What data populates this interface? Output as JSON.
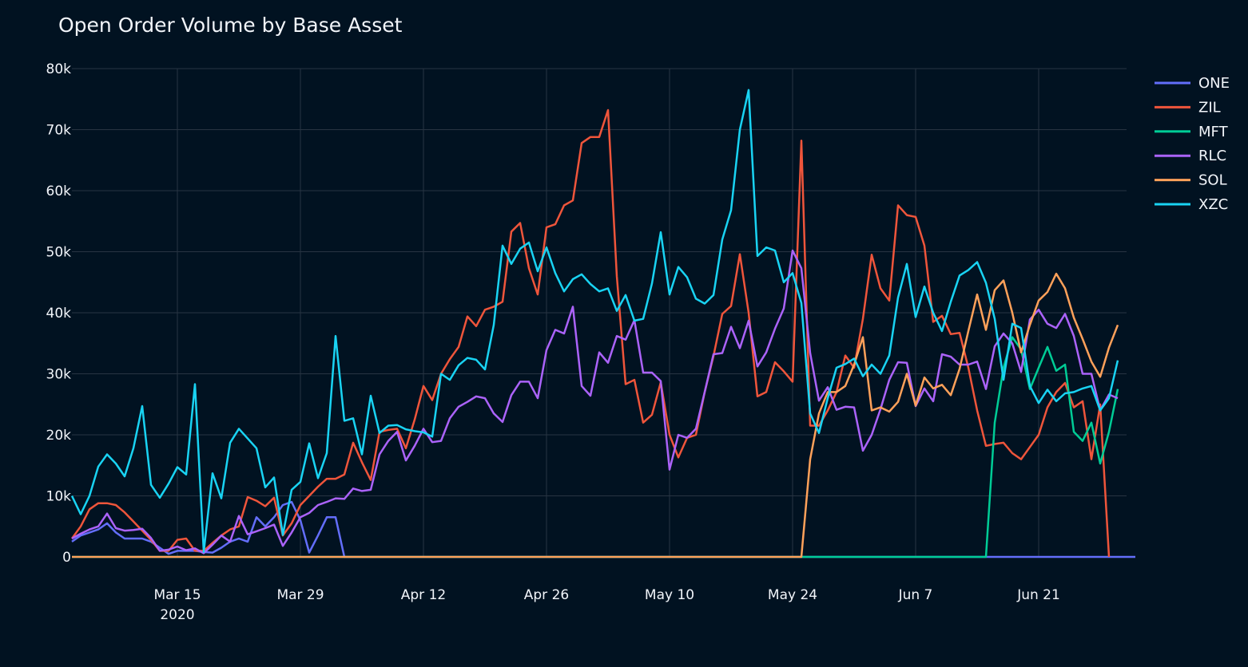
{
  "chart_data": {
    "type": "line",
    "title": "Open Order Volume by Base Asset",
    "xlabel": "",
    "ylabel": "",
    "x_start": "2020-03-03",
    "x_step_days": 1,
    "xlim": [
      "2020-03-03",
      "2020-07-01"
    ],
    "ylim": [
      0,
      80000
    ],
    "y_ticks": [
      0,
      10000,
      20000,
      30000,
      40000,
      50000,
      60000,
      70000,
      80000
    ],
    "y_tick_labels": [
      "0",
      "10k",
      "20k",
      "30k",
      "40k",
      "50k",
      "60k",
      "70k",
      "80k"
    ],
    "x_ticks": [
      {
        "date": "2020-03-15",
        "label": "Mar 15",
        "sublabel": "2020"
      },
      {
        "date": "2020-03-29",
        "label": "Mar 29",
        "sublabel": ""
      },
      {
        "date": "2020-04-12",
        "label": "Apr 12",
        "sublabel": ""
      },
      {
        "date": "2020-04-26",
        "label": "Apr 26",
        "sublabel": ""
      },
      {
        "date": "2020-05-10",
        "label": "May 10",
        "sublabel": ""
      },
      {
        "date": "2020-05-24",
        "label": "May 24",
        "sublabel": ""
      },
      {
        "date": "2020-06-07",
        "label": "Jun 7",
        "sublabel": ""
      },
      {
        "date": "2020-06-21",
        "label": "Jun 21",
        "sublabel": ""
      }
    ],
    "grid": true,
    "legend_position": "top-right",
    "series": [
      {
        "name": "ONE",
        "color": "#636efa",
        "values": [
          2500,
          3500,
          4000,
          4500,
          5500,
          4000,
          3000,
          3000,
          3000,
          2500,
          1500,
          500,
          1000,
          1000,
          1000,
          800,
          700,
          1500,
          2500,
          3000,
          2500,
          6500,
          5000,
          6500,
          8500,
          9000,
          6000,
          700,
          3500,
          6500,
          6500,
          0,
          0,
          0,
          0,
          0,
          0,
          0,
          0,
          0,
          0,
          0,
          0,
          0,
          0,
          0,
          0,
          0,
          0,
          0,
          0,
          0,
          0,
          0,
          0,
          0,
          0,
          0,
          0,
          0,
          0,
          0,
          0,
          0,
          0,
          0,
          0,
          0,
          0,
          0,
          0,
          0,
          0,
          0,
          0,
          0,
          0,
          0,
          0,
          0,
          0,
          0,
          0,
          0,
          0,
          0,
          0,
          0,
          0,
          0,
          0,
          0,
          0,
          0,
          0,
          0,
          0,
          0,
          0,
          0,
          0,
          0,
          0,
          0,
          0,
          0,
          0,
          0,
          0,
          0,
          0,
          0,
          0,
          0,
          0,
          0,
          0,
          0,
          0,
          0,
          0,
          0
        ]
      },
      {
        "name": "ZIL",
        "color": "#ef553b",
        "values": [
          3000,
          5000,
          7800,
          8800,
          8800,
          8500,
          7300,
          5800,
          4300,
          2800,
          1000,
          1000,
          2800,
          3000,
          1000,
          1000,
          2300,
          3500,
          4500,
          5000,
          9800,
          9200,
          8300,
          9700,
          3500,
          5500,
          8500,
          10000,
          11500,
          12800,
          12800,
          13500,
          18700,
          15500,
          12600,
          20500,
          20800,
          21000,
          17800,
          22500,
          28000,
          25700,
          30000,
          32400,
          34400,
          39400,
          37800,
          40500,
          41000,
          41800,
          53300,
          54700,
          47300,
          43000,
          54000,
          54500,
          57600,
          58400,
          67800,
          68800,
          68800,
          73200,
          46000,
          28300,
          29000,
          22000,
          23300,
          28600,
          20000,
          16300,
          19500,
          20000,
          27000,
          32900,
          39800,
          41100,
          49600,
          40000,
          26300,
          27000,
          31900,
          30400,
          28700,
          68200,
          21500,
          21500,
          24000,
          27000,
          33000,
          31000,
          39000,
          49500,
          44000,
          42000,
          57600,
          56000,
          55700,
          51000,
          38500,
          39500,
          36500,
          36700,
          31000,
          24000,
          18200,
          18500,
          18700,
          17000,
          16000,
          18000,
          20000,
          24500,
          27000,
          28500,
          24500,
          25500,
          16000,
          25000,
          0
        ]
      },
      {
        "name": "MFT",
        "color": "#00cc96",
        "values": [
          0,
          0,
          0,
          0,
          0,
          0,
          0,
          0,
          0,
          0,
          0,
          0,
          0,
          0,
          0,
          0,
          0,
          0,
          0,
          0,
          0,
          0,
          0,
          0,
          0,
          0,
          0,
          0,
          0,
          0,
          0,
          0,
          0,
          0,
          0,
          0,
          0,
          0,
          0,
          0,
          0,
          0,
          0,
          0,
          0,
          0,
          0,
          0,
          0,
          0,
          0,
          0,
          0,
          0,
          0,
          0,
          0,
          0,
          0,
          0,
          0,
          0,
          0,
          0,
          0,
          0,
          0,
          0,
          0,
          0,
          0,
          0,
          0,
          0,
          0,
          0,
          0,
          0,
          0,
          0,
          0,
          0,
          0,
          0,
          0,
          0,
          0,
          0,
          0,
          0,
          0,
          0,
          0,
          0,
          0,
          0,
          0,
          0,
          0,
          0,
          0,
          0,
          0,
          0,
          0,
          22000,
          31000,
          36000,
          34000,
          27500,
          31000,
          34400,
          30500,
          31500,
          20500,
          19000,
          22000,
          15300,
          20500,
          27500
        ]
      },
      {
        "name": "RLC",
        "color": "#ab63fa",
        "values": [
          3000,
          3800,
          4500,
          5000,
          7100,
          4700,
          4300,
          4400,
          4600,
          3100,
          1000,
          1200,
          1700,
          1100,
          1400,
          600,
          2000,
          3500,
          2500,
          6700,
          3700,
          4200,
          4700,
          5300,
          1800,
          4000,
          6500,
          7200,
          8500,
          9000,
          9600,
          9500,
          11200,
          10800,
          11000,
          16800,
          19000,
          20500,
          15800,
          18200,
          21000,
          18800,
          19000,
          22700,
          24600,
          25400,
          26300,
          26000,
          23500,
          22100,
          26500,
          28700,
          28700,
          26000,
          33900,
          37200,
          36600,
          41000,
          28000,
          26400,
          33500,
          31800,
          36200,
          35600,
          38800,
          30200,
          30200,
          28800,
          14300,
          20000,
          19500,
          21000,
          27000,
          33200,
          33400,
          37700,
          34200,
          38700,
          31200,
          33500,
          37400,
          40700,
          50200,
          47300,
          33400,
          25600,
          27800,
          24100,
          24600,
          24500,
          17400,
          20000,
          24200,
          29000,
          31900,
          31800,
          24700,
          27600,
          25500,
          33200,
          32800,
          31500,
          31500,
          32000,
          27500,
          34500,
          36600,
          35000,
          30300,
          38900,
          40500,
          38200,
          37500,
          39800,
          36200,
          30000,
          30000,
          24000,
          26600,
          26000
        ]
      },
      {
        "name": "SOL",
        "color": "#ffa15a",
        "values": [
          0,
          0,
          0,
          0,
          0,
          0,
          0,
          0,
          0,
          0,
          0,
          0,
          0,
          0,
          0,
          0,
          0,
          0,
          0,
          0,
          0,
          0,
          0,
          0,
          0,
          0,
          0,
          0,
          0,
          0,
          0,
          0,
          0,
          0,
          0,
          0,
          0,
          0,
          0,
          0,
          0,
          0,
          0,
          0,
          0,
          0,
          0,
          0,
          0,
          0,
          0,
          0,
          0,
          0,
          0,
          0,
          0,
          0,
          0,
          0,
          0,
          0,
          0,
          0,
          0,
          0,
          0,
          0,
          0,
          0,
          0,
          0,
          0,
          0,
          0,
          0,
          0,
          0,
          0,
          0,
          0,
          0,
          0,
          0,
          16000,
          23500,
          27000,
          27000,
          28000,
          31500,
          36000,
          24000,
          24500,
          23800,
          25400,
          30000,
          24800,
          29400,
          27600,
          28200,
          26500,
          30800,
          37000,
          43000,
          37200,
          43700,
          45300,
          40000,
          33500,
          38000,
          42000,
          43400,
          46400,
          44000,
          39200,
          35700,
          32000,
          29500,
          34300,
          38000
        ]
      },
      {
        "name": "XZC",
        "color": "#19d3f3",
        "values": [
          10000,
          7000,
          10000,
          14800,
          16800,
          15300,
          13200,
          17800,
          24700,
          11800,
          9700,
          12000,
          14700,
          13500,
          28300,
          800,
          13700,
          9600,
          18700,
          21000,
          19400,
          17800,
          11400,
          13000,
          3600,
          11000,
          12300,
          18600,
          12900,
          17000,
          36200,
          22300,
          22700,
          16800,
          26400,
          20300,
          21500,
          21600,
          20900,
          20600,
          20400,
          19700,
          30000,
          29000,
          31400,
          32600,
          32300,
          30700,
          38000,
          51000,
          48000,
          50500,
          51500,
          46800,
          50700,
          46500,
          43500,
          45500,
          46300,
          44700,
          43500,
          44000,
          40300,
          42900,
          38700,
          39000,
          44800,
          53200,
          43000,
          47500,
          45800,
          42300,
          41500,
          42900,
          52000,
          56800,
          70000,
          76500,
          49300,
          50700,
          50200,
          45000,
          46500,
          41600,
          23500,
          20300,
          26000,
          31000,
          31600,
          32500,
          29600,
          31500,
          30000,
          33000,
          42500,
          48000,
          39300,
          44300,
          40000,
          37000,
          41800,
          46100,
          47000,
          48300,
          44900,
          39000,
          29000,
          38200,
          37500,
          28000,
          25200,
          27400,
          25500,
          26800,
          27000,
          27600,
          28000,
          24000,
          26000,
          32200
        ]
      }
    ]
  }
}
